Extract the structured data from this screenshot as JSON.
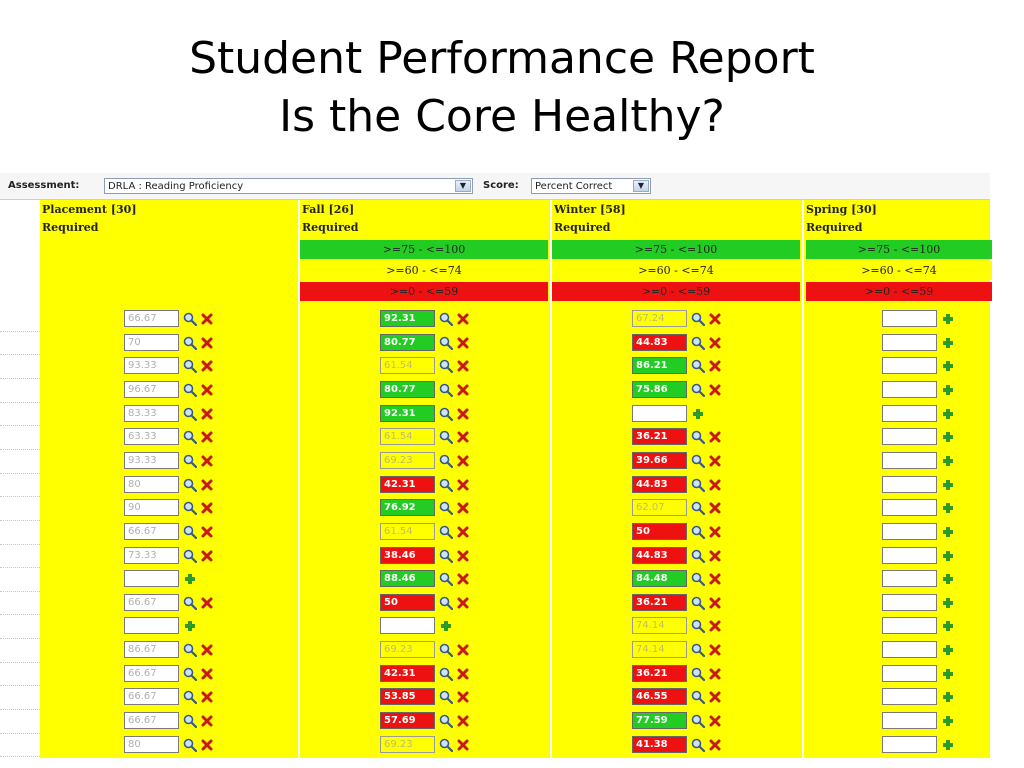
{
  "title": {
    "line1": "Student Performance Report",
    "line2": "Is the Core Healthy?"
  },
  "toolbar": {
    "assessment_label": "Assessment:",
    "assessment_value": "DRLA : Reading Proficiency",
    "score_label": "Score:",
    "score_value": "Percent Correct"
  },
  "bands": [
    ">=75 - <=100",
    ">=60 - <=74",
    ">=0 - <=59"
  ],
  "colors": {
    "green": "#22cc22",
    "red": "#ee1111",
    "yellow": "#ffff00"
  },
  "icons": {
    "view": "magnifier-icon",
    "remove": "red-x-icon",
    "add": "green-plus-icon"
  },
  "columns": [
    {
      "title": "Placement [30]",
      "sub": "Required",
      "bands": false,
      "cells": [
        {
          "v": "66.67",
          "c": "none"
        },
        {
          "v": "70",
          "c": "none"
        },
        {
          "v": "93.33",
          "c": "none"
        },
        {
          "v": "96.67",
          "c": "none"
        },
        {
          "v": "83.33",
          "c": "none"
        },
        {
          "v": "63.33",
          "c": "none"
        },
        {
          "v": "93.33",
          "c": "none"
        },
        {
          "v": "80",
          "c": "none"
        },
        {
          "v": "90",
          "c": "none"
        },
        {
          "v": "66.67",
          "c": "none"
        },
        {
          "v": "73.33",
          "c": "none"
        },
        {
          "v": "",
          "c": "empty"
        },
        {
          "v": "66.67",
          "c": "none"
        },
        {
          "v": "",
          "c": "empty"
        },
        {
          "v": "86.67",
          "c": "none"
        },
        {
          "v": "66.67",
          "c": "none"
        },
        {
          "v": "66.67",
          "c": "none"
        },
        {
          "v": "66.67",
          "c": "none"
        },
        {
          "v": "80",
          "c": "none"
        }
      ]
    },
    {
      "title": "Fall [26]",
      "sub": "Required",
      "bands": true,
      "cells": [
        {
          "v": "92.31",
          "c": "green"
        },
        {
          "v": "80.77",
          "c": "green"
        },
        {
          "v": "61.54",
          "c": "yellow"
        },
        {
          "v": "80.77",
          "c": "green"
        },
        {
          "v": "92.31",
          "c": "green"
        },
        {
          "v": "61.54",
          "c": "yellow"
        },
        {
          "v": "69.23",
          "c": "yellow"
        },
        {
          "v": "42.31",
          "c": "red"
        },
        {
          "v": "76.92",
          "c": "green"
        },
        {
          "v": "61.54",
          "c": "yellow"
        },
        {
          "v": "38.46",
          "c": "red"
        },
        {
          "v": "88.46",
          "c": "green"
        },
        {
          "v": "50",
          "c": "red"
        },
        {
          "v": "",
          "c": "empty"
        },
        {
          "v": "69.23",
          "c": "yellow"
        },
        {
          "v": "42.31",
          "c": "red"
        },
        {
          "v": "53.85",
          "c": "red"
        },
        {
          "v": "57.69",
          "c": "red"
        },
        {
          "v": "69.23",
          "c": "yellow"
        }
      ]
    },
    {
      "title": "Winter [58]",
      "sub": "Required",
      "bands": true,
      "cells": [
        {
          "v": "67.24",
          "c": "yellow"
        },
        {
          "v": "44.83",
          "c": "red"
        },
        {
          "v": "86.21",
          "c": "green"
        },
        {
          "v": "75.86",
          "c": "green"
        },
        {
          "v": "",
          "c": "empty"
        },
        {
          "v": "36.21",
          "c": "red"
        },
        {
          "v": "39.66",
          "c": "red"
        },
        {
          "v": "44.83",
          "c": "red"
        },
        {
          "v": "62.07",
          "c": "yellow"
        },
        {
          "v": "50",
          "c": "red"
        },
        {
          "v": "44.83",
          "c": "red"
        },
        {
          "v": "84.48",
          "c": "green"
        },
        {
          "v": "36.21",
          "c": "red"
        },
        {
          "v": "74.14",
          "c": "yellow"
        },
        {
          "v": "74.14",
          "c": "yellow"
        },
        {
          "v": "36.21",
          "c": "red"
        },
        {
          "v": "46.55",
          "c": "red"
        },
        {
          "v": "77.59",
          "c": "green"
        },
        {
          "v": "41.38",
          "c": "red"
        }
      ]
    },
    {
      "title": "Spring [30]",
      "sub": "Required",
      "bands": true,
      "cells": [
        {
          "v": "",
          "c": "empty"
        },
        {
          "v": "",
          "c": "empty"
        },
        {
          "v": "",
          "c": "empty"
        },
        {
          "v": "",
          "c": "empty"
        },
        {
          "v": "",
          "c": "empty"
        },
        {
          "v": "",
          "c": "empty"
        },
        {
          "v": "",
          "c": "empty"
        },
        {
          "v": "",
          "c": "empty"
        },
        {
          "v": "",
          "c": "empty"
        },
        {
          "v": "",
          "c": "empty"
        },
        {
          "v": "",
          "c": "empty"
        },
        {
          "v": "",
          "c": "empty"
        },
        {
          "v": "",
          "c": "empty"
        },
        {
          "v": "",
          "c": "empty"
        },
        {
          "v": "",
          "c": "empty"
        },
        {
          "v": "",
          "c": "empty"
        },
        {
          "v": "",
          "c": "empty"
        },
        {
          "v": "",
          "c": "empty"
        },
        {
          "v": "",
          "c": "empty"
        }
      ]
    }
  ]
}
